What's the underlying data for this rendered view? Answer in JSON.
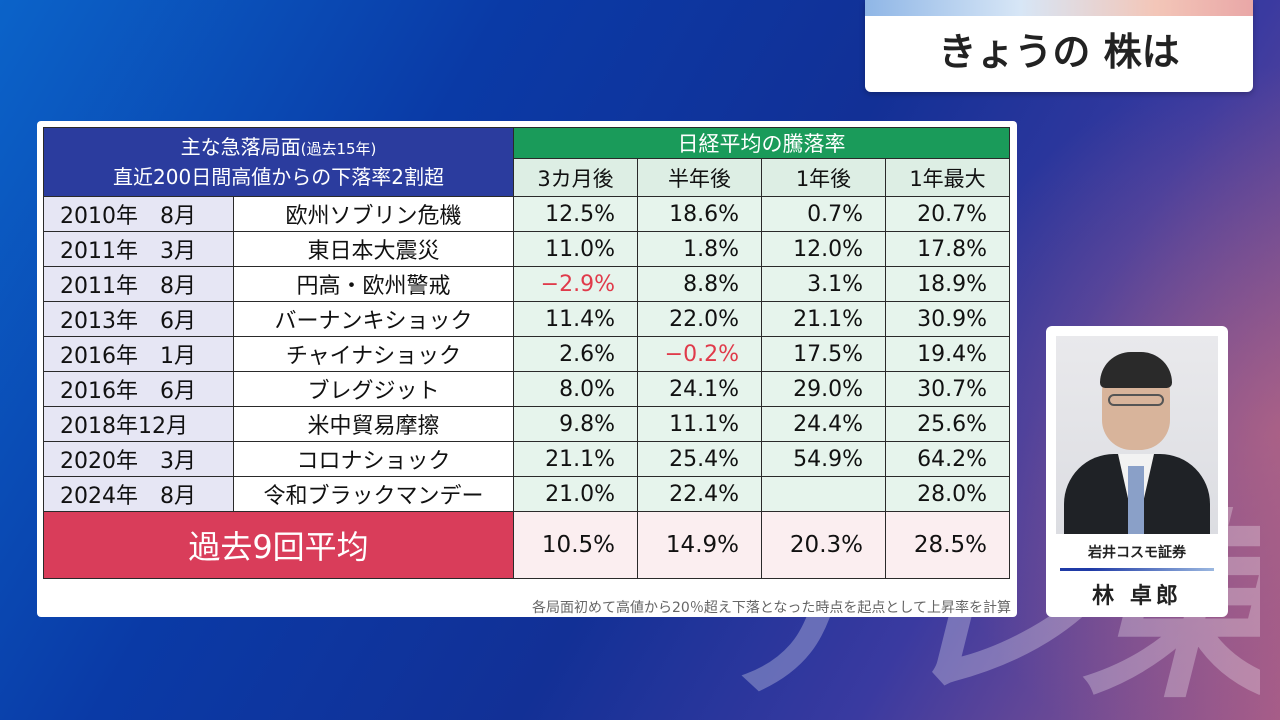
{
  "title_card": {
    "title": "きょうの 株は"
  },
  "watermark": {
    "text": "テレ東"
  },
  "table": {
    "left_header_line1": "主な急落局面",
    "left_header_line1_sub": "(過去15年)",
    "left_header_line2": "直近200日間高値からの下落率2割超",
    "right_header": "日経平均の騰落率",
    "columns": [
      "3カ月後",
      "半年後",
      "1年後",
      "1年最大"
    ],
    "rows": [
      {
        "date": "2010年　8月",
        "event": "欧州ソブリン危機",
        "values": [
          "12.5%",
          "18.6%",
          "0.7%",
          "20.7%"
        ]
      },
      {
        "date": "2011年　3月",
        "event": "東日本大震災",
        "values": [
          "11.0%",
          "1.8%",
          "12.0%",
          "17.8%"
        ]
      },
      {
        "date": "2011年　8月",
        "event": "円高・欧州警戒",
        "values": [
          "−2.9%",
          "8.8%",
          "3.1%",
          "18.9%"
        ]
      },
      {
        "date": "2013年　6月",
        "event": "バーナンキショック",
        "values": [
          "11.4%",
          "22.0%",
          "21.1%",
          "30.9%"
        ]
      },
      {
        "date": "2016年　1月",
        "event": "チャイナショック",
        "values": [
          "2.6%",
          "−0.2%",
          "17.5%",
          "19.4%"
        ]
      },
      {
        "date": "2016年　6月",
        "event": "ブレグジット",
        "values": [
          "8.0%",
          "24.1%",
          "29.0%",
          "30.7%"
        ]
      },
      {
        "date": "2018年12月",
        "event": "米中貿易摩擦",
        "values": [
          "9.8%",
          "11.1%",
          "24.4%",
          "25.6%"
        ]
      },
      {
        "date": "2020年　3月",
        "event": "コロナショック",
        "values": [
          "21.1%",
          "25.4%",
          "54.9%",
          "64.2%"
        ]
      },
      {
        "date": "2024年　8月",
        "event": "令和ブラックマンデー",
        "values": [
          "21.0%",
          "22.4%",
          "",
          "28.0%"
        ]
      }
    ],
    "average_label": "過去9回平均",
    "average_values": [
      "10.5%",
      "14.9%",
      "20.3%",
      "28.5%"
    ],
    "note": "各局面初めて高値から20％超え下落となった時点を起点として上昇率を計算",
    "negative_color": "#e03a4a"
  },
  "guest": {
    "company": "岩井コスモ証券",
    "name": "林 卓郎"
  },
  "colors": {
    "header_blue": "#2b3c9e",
    "header_green": "#1a9b5a",
    "average_red": "#d93d5a"
  }
}
